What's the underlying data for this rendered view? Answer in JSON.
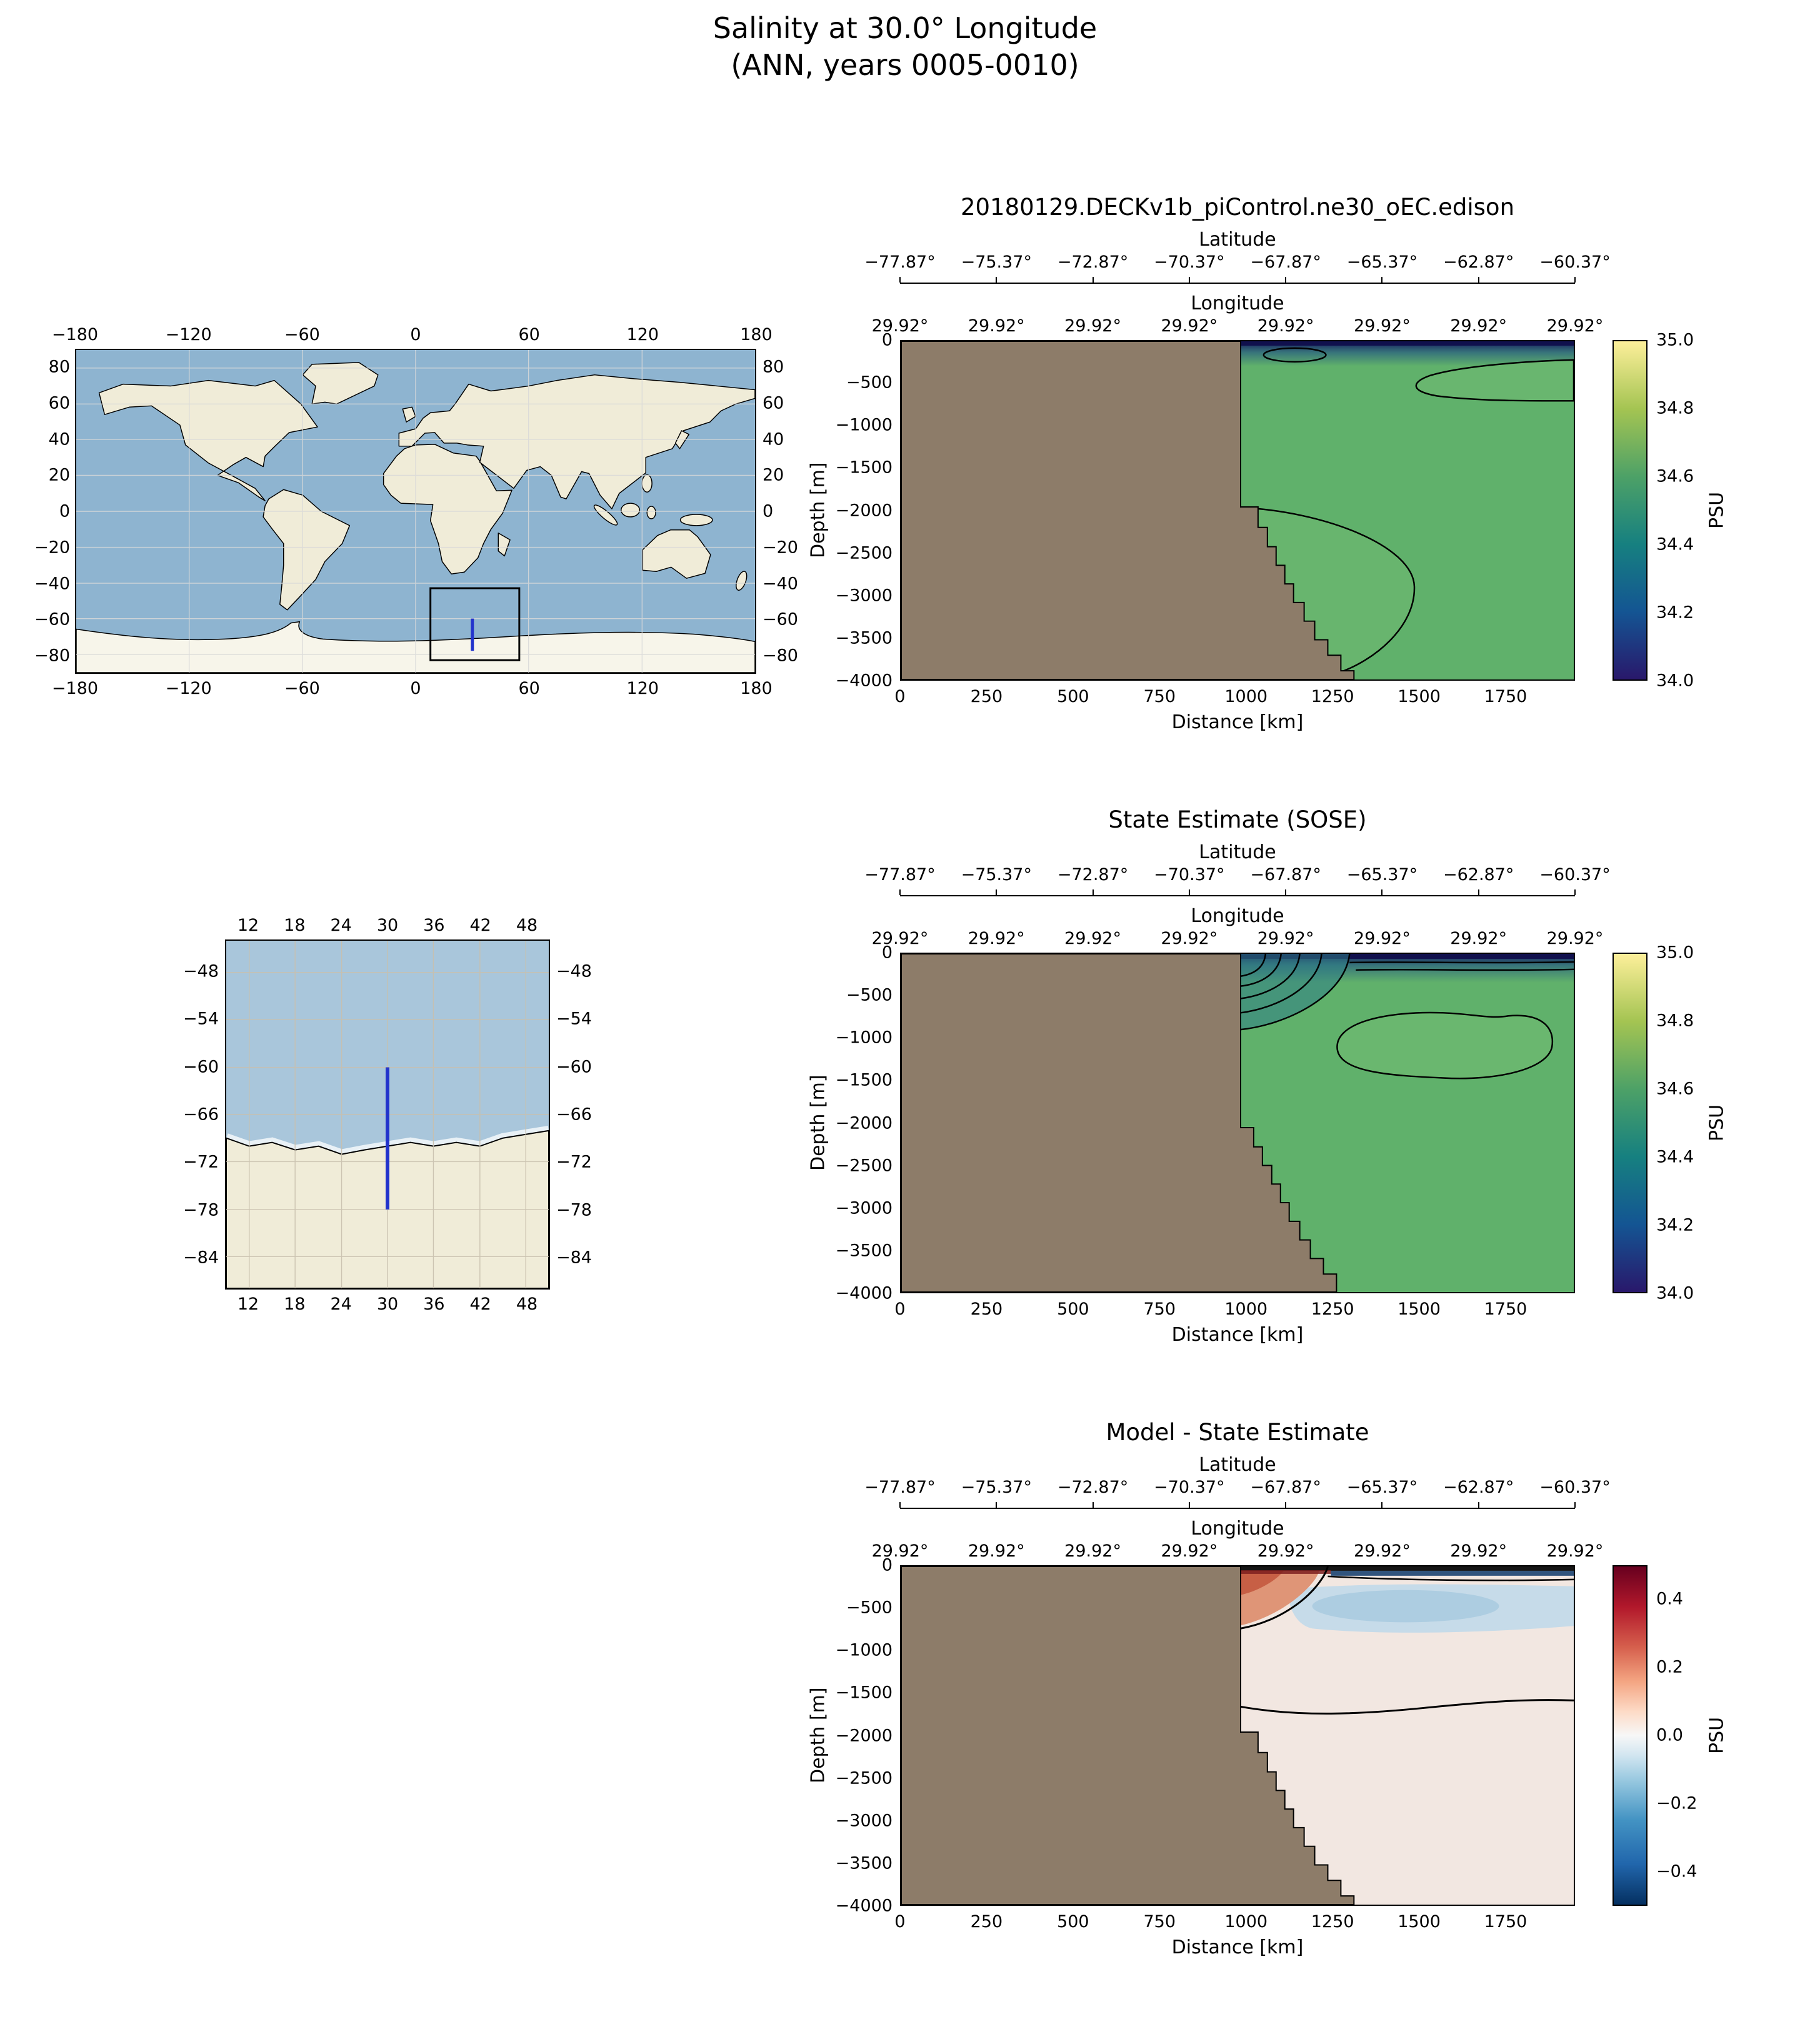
{
  "figure_title": {
    "line1": "Salinity at 30.0° Longitude",
    "line2": "(ANN, years 0005-0010)"
  },
  "world_map": {
    "lon_ticks": [
      "−180",
      "−120",
      "−60",
      "0",
      "60",
      "120",
      "180"
    ],
    "lat_ticks": [
      "80",
      "60",
      "40",
      "20",
      "0",
      "−20",
      "−40",
      "−60",
      "−80"
    ],
    "selection_box": {
      "lon_range": [
        8,
        55
      ],
      "lat_range": [
        -83,
        -43
      ]
    },
    "transect": {
      "lon": 30,
      "lat_range": [
        -78,
        -60
      ]
    },
    "colors": {
      "ocean": "#8eb4d0",
      "land": "#f0ecd8",
      "antarctica": "#f7f5ea",
      "selection_box": "#000000",
      "transect": "#2233cc"
    }
  },
  "regional_map": {
    "lon_ticks": [
      "12",
      "18",
      "24",
      "30",
      "36",
      "42",
      "48"
    ],
    "lat_ticks": [
      "−48",
      "−54",
      "−60",
      "−66",
      "−72",
      "−78",
      "−84"
    ],
    "transect": {
      "lon": 30,
      "lat_range": [
        -78,
        -60
      ]
    },
    "colors": {
      "ocean": "#a9c6db",
      "land": "#f0ecd8",
      "transect": "#2233cc",
      "grid": "#c9c0ae"
    }
  },
  "chart_data": [
    {
      "type": "heatmap",
      "title": "20180129.DECKv1b_piControl.ne30_oEC.edison",
      "top_axis_1": {
        "label": "Latitude",
        "ticks": [
          "−77.87°",
          "−75.37°",
          "−72.87°",
          "−70.37°",
          "−67.87°",
          "−65.37°",
          "−62.87°",
          "−60.37°"
        ]
      },
      "top_axis_2": {
        "label": "Longitude",
        "ticks": [
          "29.92°",
          "29.92°",
          "29.92°",
          "29.92°",
          "29.92°",
          "29.92°",
          "29.92°",
          "29.92°"
        ]
      },
      "xlabel": "Distance [km]",
      "ylabel": "Depth [m]",
      "xticks": [
        "0",
        "250",
        "500",
        "750",
        "1000",
        "1250",
        "1500",
        "1750"
      ],
      "yticks": [
        "0",
        "−500",
        "−1000",
        "−1500",
        "−2000",
        "−2500",
        "−3000",
        "−3500",
        "−4000"
      ],
      "xlim_km": [
        0,
        1950
      ],
      "ylim_m": [
        -4000,
        0
      ],
      "colorbar": {
        "label": "PSU",
        "ticks": [
          "35.0",
          "34.8",
          "34.6",
          "34.4",
          "34.2",
          "34.0"
        ],
        "range": [
          34.0,
          35.0
        ],
        "colormap": "haline: dark blue → teal → green → pale yellow"
      },
      "land_mask": {
        "color": "#8d7c69",
        "shelf_edge_km": 985,
        "description": "Bathymetry mask from 0 to ~985 km at the surface, stepping outward to ~1310 km by 4000 m depth"
      },
      "field_summary": "Interior salinity ~34.6–34.7 PSU (green); fresh (<34.2 PSU) dark-blue surface layer in the upper ~100 m; closed contours near 250–700 m depth on the right side and a large closed contour hugging the slope between ~2000 and 3900 m"
    },
    {
      "type": "heatmap",
      "title": "State Estimate (SOSE)",
      "top_axis_1": {
        "label": "Latitude",
        "ticks": [
          "−77.87°",
          "−75.37°",
          "−72.87°",
          "−70.37°",
          "−67.87°",
          "−65.37°",
          "−62.87°",
          "−60.37°"
        ]
      },
      "top_axis_2": {
        "label": "Longitude",
        "ticks": [
          "29.92°",
          "29.92°",
          "29.92°",
          "29.92°",
          "29.92°",
          "29.92°",
          "29.92°",
          "29.92°"
        ]
      },
      "xlabel": "Distance [km]",
      "ylabel": "Depth [m]",
      "xticks": [
        "0",
        "250",
        "500",
        "750",
        "1000",
        "1250",
        "1500",
        "1750"
      ],
      "yticks": [
        "0",
        "−500",
        "−1000",
        "−1500",
        "−2000",
        "−2500",
        "−3000",
        "−3500",
        "−4000"
      ],
      "xlim_km": [
        0,
        1950
      ],
      "ylim_m": [
        -4000,
        0
      ],
      "colorbar": {
        "label": "PSU",
        "ticks": [
          "35.0",
          "34.8",
          "34.6",
          "34.4",
          "34.2",
          "34.0"
        ],
        "range": [
          34.0,
          35.0
        ],
        "colormap": "haline: dark blue → teal → green → pale yellow"
      },
      "land_mask": {
        "color": "#8d7c69",
        "shelf_edge_km": 985,
        "description": "Bathymetry mask from 0 to ~985 km at the surface, stepping outward to ~1260 km by 4000 m depth"
      },
      "field_summary": "Interior ~34.6–34.7 PSU; strong near-shelf halocline with tightly nested contours in the upper 500 m at ~1000–1300 km; closed ~34.7 contour between ~600 and 1500 m depth at 1300–1900 km; thin fresh dark-blue surface layer"
    },
    {
      "type": "heatmap",
      "title": "Model - State Estimate",
      "top_axis_1": {
        "label": "Latitude",
        "ticks": [
          "−77.87°",
          "−75.37°",
          "−72.87°",
          "−70.37°",
          "−67.87°",
          "−65.37°",
          "−62.87°",
          "−60.37°"
        ]
      },
      "top_axis_2": {
        "label": "Longitude",
        "ticks": [
          "29.92°",
          "29.92°",
          "29.92°",
          "29.92°",
          "29.92°",
          "29.92°",
          "29.92°",
          "29.92°"
        ]
      },
      "xlabel": "Distance [km]",
      "ylabel": "Depth [m]",
      "xticks": [
        "0",
        "250",
        "500",
        "750",
        "1000",
        "1250",
        "1500",
        "1750"
      ],
      "yticks": [
        "0",
        "−500",
        "−1000",
        "−1500",
        "−2000",
        "−2500",
        "−3000",
        "−3500",
        "−4000"
      ],
      "xlim_km": [
        0,
        1950
      ],
      "ylim_m": [
        -4000,
        0
      ],
      "colorbar": {
        "label": "PSU",
        "ticks": [
          "0.4",
          "0.2",
          "0.0",
          "−0.2",
          "−0.4"
        ],
        "range": [
          -0.5,
          0.5
        ],
        "colormap": "RdBu diverging: dark blue → white → dark red"
      },
      "land_mask": {
        "color": "#8d7c69",
        "shelf_edge_km": 985,
        "description": "Same bathymetry mask as model panel"
      },
      "field_summary": "Difference mostly +0.0 to +0.1 PSU (pale pink); fresh bias band of −0.1 to −0.2 PSU between ~250 and 800 m depth; salty bias up to +0.3 PSU near the shelf in the upper 500 m; strong alternating anomalies in the thin surface layer; zero contour near 1600 m"
    }
  ]
}
